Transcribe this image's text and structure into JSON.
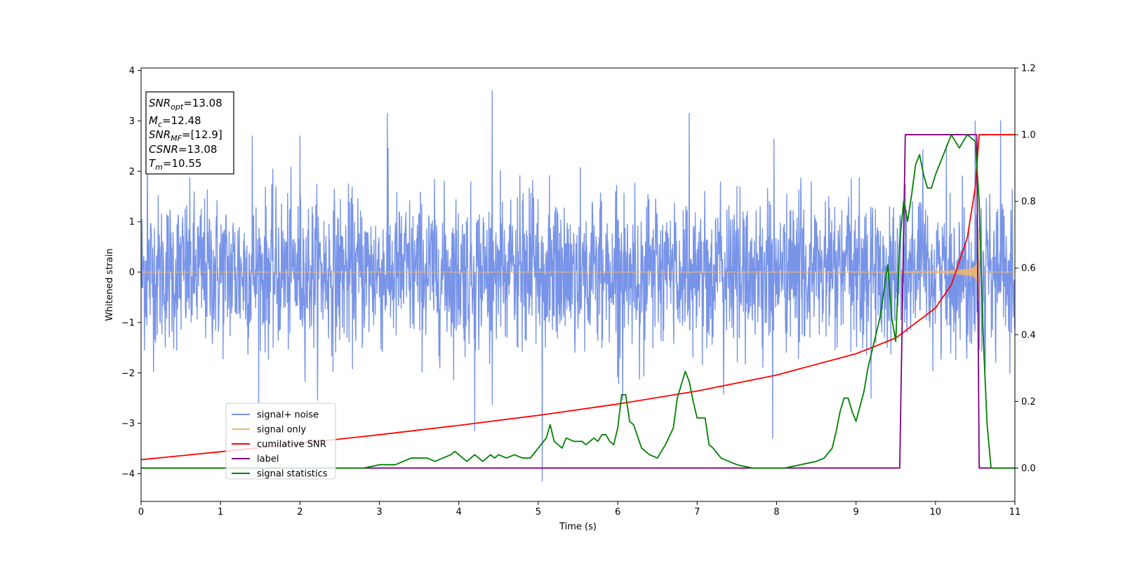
{
  "chart_data": {
    "type": "line",
    "xlabel": "Time (s)",
    "ylabel": "Whitened strain",
    "xlim": [
      0,
      11
    ],
    "ylim_left": [
      -4.55,
      4.05
    ],
    "ylim_right": [
      -0.1,
      1.2
    ],
    "xticks": [
      "0",
      "1",
      "2",
      "3",
      "4",
      "5",
      "6",
      "7",
      "8",
      "9",
      "10",
      "11"
    ],
    "yticks_left": [
      "−4",
      "−3",
      "−2",
      "−1",
      "0",
      "1",
      "2",
      "3",
      "4"
    ],
    "yticks_right": [
      "0.0",
      "0.2",
      "0.4",
      "0.6",
      "0.8",
      "1.0",
      "1.2"
    ],
    "grid": false,
    "legend_position": "lower-left",
    "annotation": {
      "snr_opt": {
        "sym": "SNR",
        "sub": "opt",
        "value": "=13.08"
      },
      "mc": {
        "sym": "M",
        "sub": "c",
        "value": "=12.48"
      },
      "snr_mf": {
        "sym": "SNR",
        "sub": "MF",
        "value": "=[12.9]"
      },
      "csnr": {
        "sym": "CSNR",
        "sub": "",
        "value": "=13.08"
      },
      "tm": {
        "sym": "T",
        "sub": "m",
        "value": "=10.55"
      }
    },
    "series": [
      {
        "name": "signal+ noise",
        "axis": "left",
        "color": "#7894e8",
        "kind": "noise",
        "sigma": 0.75,
        "peaks": [
          [
            0.08,
            2.6
          ],
          [
            1.4,
            2.7
          ],
          [
            2.0,
            2.7
          ],
          [
            3.1,
            3.15
          ],
          [
            4.2,
            -3.15
          ],
          [
            4.42,
            3.6
          ],
          [
            5.05,
            -4.15
          ],
          [
            6.9,
            3.15
          ],
          [
            7.95,
            -3.3
          ],
          [
            10.5,
            3.0
          ],
          [
            10.82,
            3.0
          ]
        ]
      },
      {
        "name": "signal only",
        "axis": "left",
        "color": "#f5b76b",
        "kind": "chirp",
        "t_merge": 10.55
      },
      {
        "name": "cumilative SNR",
        "axis": "right",
        "color": "#ff0000",
        "kind": "line",
        "x": [
          0,
          1,
          2,
          3,
          4,
          5,
          6,
          7,
          8,
          9,
          9.5,
          10,
          10.2,
          10.4,
          10.5,
          10.55,
          11
        ],
        "y": [
          0.025,
          0.049,
          0.074,
          0.1,
          0.128,
          0.158,
          0.192,
          0.231,
          0.279,
          0.343,
          0.39,
          0.48,
          0.55,
          0.69,
          0.84,
          1.0,
          1.0
        ]
      },
      {
        "name": "label",
        "axis": "right",
        "color": "#800080",
        "kind": "line",
        "x": [
          0,
          9.55,
          9.62,
          10.52,
          10.55,
          11
        ],
        "y": [
          0.0,
          0.0,
          1.0,
          1.0,
          0.0,
          0.0
        ]
      },
      {
        "name": "signal statistics",
        "axis": "right",
        "color": "#008000",
        "kind": "line",
        "x": [
          0,
          0.3,
          0.6,
          1.0,
          1.5,
          2.0,
          2.5,
          2.8,
          3.0,
          3.2,
          3.4,
          3.5,
          3.6,
          3.7,
          3.8,
          3.9,
          3.95,
          4.0,
          4.1,
          4.15,
          4.2,
          4.3,
          4.35,
          4.4,
          4.45,
          4.5,
          4.6,
          4.7,
          4.8,
          4.9,
          5.0,
          5.1,
          5.15,
          5.2,
          5.3,
          5.35,
          5.45,
          5.55,
          5.6,
          5.7,
          5.75,
          5.8,
          5.85,
          5.9,
          5.95,
          6.0,
          6.05,
          6.1,
          6.15,
          6.2,
          6.3,
          6.4,
          6.5,
          6.6,
          6.7,
          6.75,
          6.8,
          6.85,
          6.9,
          6.95,
          7.0,
          7.1,
          7.15,
          7.2,
          7.3,
          7.4,
          7.5,
          7.7,
          7.9,
          8.1,
          8.3,
          8.5,
          8.6,
          8.7,
          8.75,
          8.8,
          8.85,
          8.9,
          8.95,
          9.0,
          9.1,
          9.15,
          9.2,
          9.3,
          9.4,
          9.45,
          9.5,
          9.55,
          9.6,
          9.65,
          9.7,
          9.75,
          9.8,
          9.85,
          9.9,
          9.95,
          10.0,
          10.05,
          10.1,
          10.15,
          10.2,
          10.25,
          10.3,
          10.35,
          10.4,
          10.45,
          10.5,
          10.55,
          10.6,
          10.65,
          10.7,
          10.75,
          11.0
        ],
        "y": [
          0.0,
          0.0,
          0.0,
          0.0,
          0.0,
          0.0,
          0.0,
          0.0,
          0.01,
          0.01,
          0.03,
          0.03,
          0.03,
          0.02,
          0.03,
          0.04,
          0.05,
          0.04,
          0.02,
          0.03,
          0.04,
          0.02,
          0.03,
          0.04,
          0.03,
          0.04,
          0.03,
          0.04,
          0.03,
          0.03,
          0.06,
          0.09,
          0.13,
          0.08,
          0.06,
          0.09,
          0.08,
          0.08,
          0.07,
          0.09,
          0.08,
          0.1,
          0.1,
          0.08,
          0.07,
          0.12,
          0.22,
          0.22,
          0.14,
          0.13,
          0.06,
          0.04,
          0.03,
          0.07,
          0.12,
          0.21,
          0.25,
          0.29,
          0.26,
          0.2,
          0.15,
          0.15,
          0.07,
          0.06,
          0.03,
          0.02,
          0.01,
          0.0,
          0.0,
          0.0,
          0.01,
          0.02,
          0.03,
          0.06,
          0.11,
          0.17,
          0.21,
          0.21,
          0.17,
          0.14,
          0.23,
          0.3,
          0.35,
          0.45,
          0.61,
          0.45,
          0.38,
          0.68,
          0.8,
          0.74,
          0.82,
          0.91,
          0.94,
          0.88,
          0.84,
          0.84,
          0.88,
          0.91,
          0.94,
          0.97,
          1.0,
          0.98,
          0.96,
          0.98,
          1.0,
          0.99,
          0.98,
          0.8,
          0.4,
          0.13,
          0.0,
          0.0,
          0.0
        ]
      }
    ]
  }
}
